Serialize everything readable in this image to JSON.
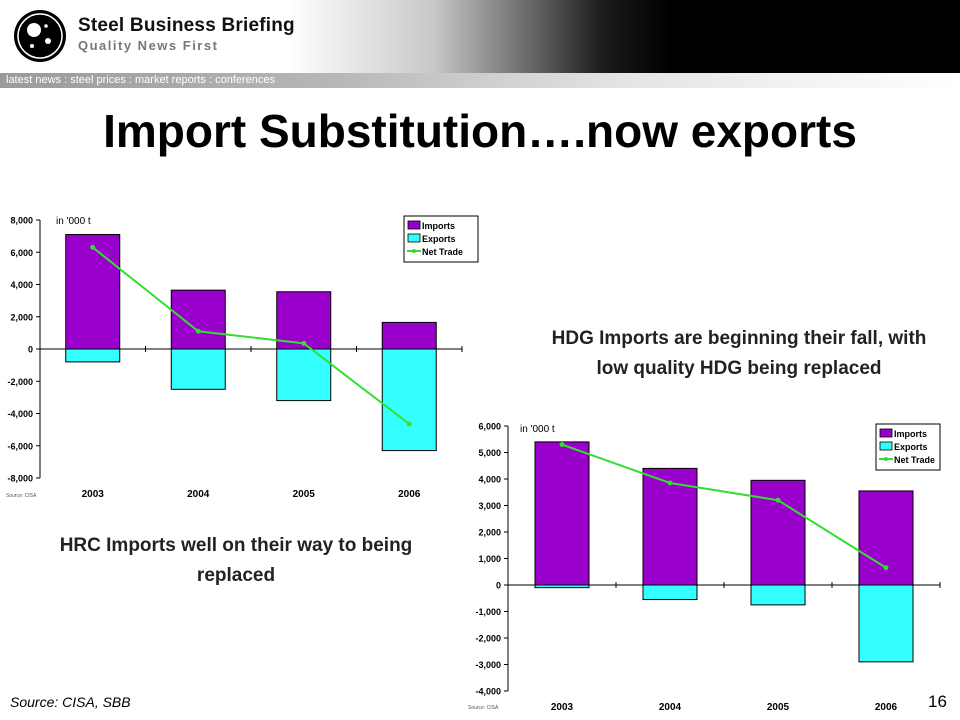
{
  "header": {
    "brand": "Steel Business Briefing",
    "tagline": "Quality News First",
    "nav": "latest news : steel prices : market reports : conferences"
  },
  "page": {
    "title": "Import Substitution….now exports",
    "source": "Source: CISA, SBB",
    "page_number": "16"
  },
  "colors": {
    "imports": "#9900cc",
    "exports": "#33ffff",
    "net_trade": "#33dd33"
  },
  "chart_data": [
    {
      "type": "bar",
      "caption": "HRC Imports well on their way to being replaced",
      "unit_label": "in '000 t",
      "source_note": "Source: CISA",
      "categories": [
        "2003",
        "2004",
        "2005",
        "2006"
      ],
      "ylim": [
        -8000,
        8000
      ],
      "yticks": [
        -8000,
        -6000,
        -4000,
        -2000,
        0,
        2000,
        4000,
        6000,
        8000
      ],
      "ytick_labels": [
        "-8,000",
        "-6,000",
        "-4,000",
        "-2,000",
        "0",
        "2,000",
        "4,000",
        "6,000",
        "8,000"
      ],
      "legend_position": "top-right",
      "series": [
        {
          "name": "Imports",
          "kind": "bar",
          "values": [
            7100,
            3650,
            3550,
            1650
          ]
        },
        {
          "name": "Exports",
          "kind": "bar",
          "values": [
            -800,
            -2500,
            -3200,
            -6300
          ]
        },
        {
          "name": "Net Trade",
          "kind": "line",
          "values": [
            6300,
            1100,
            350,
            -4650
          ]
        }
      ]
    },
    {
      "type": "bar",
      "caption": "HDG Imports are beginning their fall, with low quality HDG being replaced",
      "unit_label": "in '000 t",
      "source_note": "Source: CISA",
      "categories": [
        "2003",
        "2004",
        "2005",
        "2006"
      ],
      "ylim": [
        -4000,
        6000
      ],
      "yticks": [
        -4000,
        -3000,
        -2000,
        -1000,
        0,
        1000,
        2000,
        3000,
        4000,
        5000,
        6000
      ],
      "ytick_labels": [
        "-4,000",
        "-3,000",
        "-2,000",
        "-1,000",
        "0",
        "1,000",
        "2,000",
        "3,000",
        "4,000",
        "5,000",
        "6,000"
      ],
      "legend_position": "top-right",
      "series": [
        {
          "name": "Imports",
          "kind": "bar",
          "values": [
            5400,
            4400,
            3950,
            3550
          ]
        },
        {
          "name": "Exports",
          "kind": "bar",
          "values": [
            -100,
            -550,
            -750,
            -2900
          ]
        },
        {
          "name": "Net Trade",
          "kind": "line",
          "values": [
            5300,
            3850,
            3200,
            650
          ]
        }
      ]
    }
  ]
}
